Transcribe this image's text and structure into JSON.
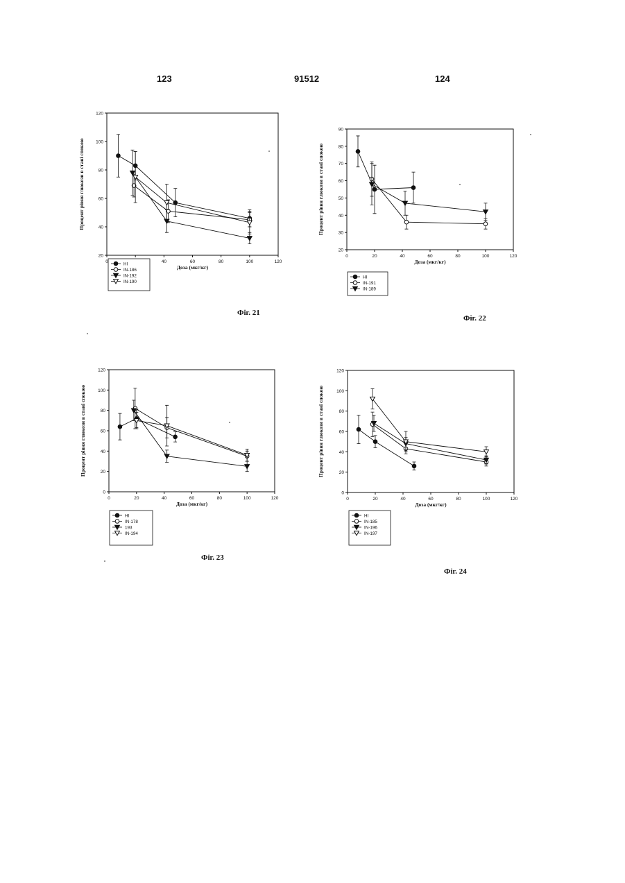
{
  "header": {
    "left": "123",
    "center": "91512",
    "right": "124"
  },
  "chart_data": [
    {
      "id": "fig21",
      "type": "line",
      "figure_label": "Фіг. 21",
      "xlabel": "Доза (мкг/кг)",
      "ylabel": "Процент рівня глюкози в стані спокою",
      "xlim": [
        0,
        120
      ],
      "ylim": [
        20,
        120
      ],
      "xticks": [
        0,
        20,
        40,
        60,
        80,
        100,
        120
      ],
      "yticks": [
        20,
        40,
        60,
        80,
        100,
        120
      ],
      "grid": false,
      "legend_position": "bottom-left",
      "series": [
        {
          "name": "HI",
          "marker": "filled-circle",
          "x": [
            8,
            20,
            48,
            100
          ],
          "y": [
            90,
            83,
            57,
            46
          ],
          "err": [
            15,
            10,
            10,
            6
          ]
        },
        {
          "name": "IN-186",
          "marker": "open-circle",
          "x": [
            19,
            43,
            100
          ],
          "y": [
            69,
            51,
            45
          ],
          "err": [
            8,
            8,
            5
          ]
        },
        {
          "name": "IN-192",
          "marker": "filled-triangle",
          "x": [
            18,
            42,
            100
          ],
          "y": [
            78,
            44,
            32
          ],
          "err": [
            16,
            8,
            4
          ]
        },
        {
          "name": "IN-190",
          "marker": "open-triangle",
          "x": [
            20,
            42,
            100
          ],
          "y": [
            75,
            57,
            43
          ],
          "err": [
            18,
            13,
            8
          ]
        }
      ]
    },
    {
      "id": "fig22",
      "type": "line",
      "figure_label": "Фіг. 22",
      "xlabel": "Доза (мкг/кг)",
      "ylabel": "Процент рівня глюкози в стані спокою",
      "xlim": [
        0,
        120
      ],
      "ylim": [
        20,
        90
      ],
      "xticks": [
        0,
        20,
        40,
        60,
        80,
        100,
        120
      ],
      "yticks": [
        20,
        30,
        40,
        50,
        60,
        70,
        80,
        90
      ],
      "grid": false,
      "legend_position": "bottom-left",
      "series": [
        {
          "name": "HI",
          "marker": "filled-circle",
          "x": [
            8,
            20,
            48
          ],
          "y": [
            77,
            55,
            56
          ],
          "err": [
            9,
            14,
            9
          ]
        },
        {
          "name": "IN-191",
          "marker": "open-circle",
          "x": [
            18,
            43,
            100
          ],
          "y": [
            61,
            36,
            35
          ],
          "err": [
            10,
            4,
            3
          ]
        },
        {
          "name": "IN-189",
          "marker": "filled-triangle",
          "x": [
            18,
            42,
            100
          ],
          "y": [
            58,
            47,
            42
          ],
          "err": [
            12,
            7,
            5
          ]
        }
      ]
    },
    {
      "id": "fig23",
      "type": "line",
      "figure_label": "Фіг. 23",
      "xlabel": "Доза (мкг/кг)",
      "ylabel": "Процент рівня глюкози в стані спокою",
      "xlim": [
        0,
        120
      ],
      "ylim": [
        0,
        120
      ],
      "xticks": [
        0,
        20,
        40,
        60,
        80,
        100,
        120
      ],
      "yticks": [
        0,
        20,
        40,
        60,
        80,
        100,
        120
      ],
      "grid": false,
      "legend_position": "bottom-left",
      "series": [
        {
          "name": "HI",
          "marker": "filled-circle",
          "x": [
            8,
            20,
            48
          ],
          "y": [
            64,
            72,
            54
          ],
          "err": [
            13,
            9,
            5
          ]
        },
        {
          "name": "IN-178",
          "marker": "open-circle",
          "x": [
            19,
            42,
            100
          ],
          "y": [
            82,
            63,
            35
          ],
          "err": [
            20,
            10,
            5
          ]
        },
        {
          "name": "193",
          "marker": "filled-triangle",
          "x": [
            18,
            42,
            100
          ],
          "y": [
            80,
            35,
            25
          ],
          "err": [
            10,
            6,
            5
          ]
        },
        {
          "name": "IN-194",
          "marker": "open-triangle",
          "x": [
            20,
            42,
            100
          ],
          "y": [
            70,
            65,
            36
          ],
          "err": [
            8,
            20,
            6
          ]
        }
      ]
    },
    {
      "id": "fig24",
      "type": "line",
      "figure_label": "Фіг. 24",
      "xlabel": "Доза (мкг/кг)",
      "ylabel": "Процент рівня глюкози в стані спокою",
      "xlim": [
        0,
        120
      ],
      "ylim": [
        0,
        120
      ],
      "xticks": [
        0,
        20,
        40,
        60,
        80,
        100,
        120
      ],
      "yticks": [
        0,
        20,
        40,
        60,
        80,
        100,
        120
      ],
      "grid": false,
      "legend_position": "bottom-left",
      "series": [
        {
          "name": "HI",
          "marker": "filled-circle",
          "x": [
            8,
            20,
            48
          ],
          "y": [
            62,
            50,
            26
          ],
          "err": [
            14,
            6,
            4
          ]
        },
        {
          "name": "IN-185",
          "marker": "open-circle",
          "x": [
            18,
            42,
            100
          ],
          "y": [
            67,
            43,
            30
          ],
          "err": [
            12,
            5,
            4
          ]
        },
        {
          "name": "IN-196",
          "marker": "filled-triangle",
          "x": [
            19,
            42,
            100
          ],
          "y": [
            68,
            48,
            32
          ],
          "err": [
            8,
            6,
            4
          ]
        },
        {
          "name": "IN-197",
          "marker": "open-triangle",
          "x": [
            18,
            42,
            100
          ],
          "y": [
            92,
            50,
            40
          ],
          "err": [
            10,
            10,
            5
          ]
        }
      ]
    }
  ]
}
